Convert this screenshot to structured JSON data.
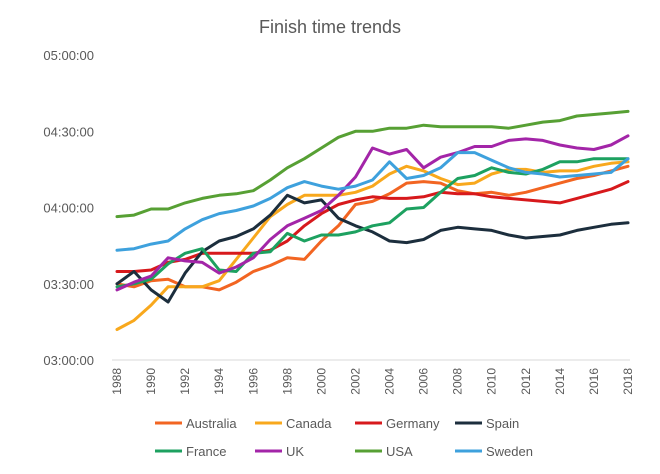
{
  "chart_data": {
    "type": "line",
    "title": "Finish time trends",
    "xlabel": "",
    "ylabel": "",
    "x": [
      1988,
      1989,
      1990,
      1991,
      1992,
      1993,
      1994,
      1995,
      1996,
      1997,
      1998,
      1999,
      2000,
      2001,
      2002,
      2003,
      2004,
      2005,
      2006,
      2007,
      2008,
      2009,
      2010,
      2011,
      2012,
      2013,
      2014,
      2015,
      2016,
      2017,
      2018
    ],
    "x_ticks": [
      "1988",
      "1990",
      "1992",
      "1994",
      "1996",
      "1998",
      "2000",
      "2002",
      "2004",
      "2006",
      "2008",
      "2010",
      "2012",
      "2014",
      "2016",
      "2018"
    ],
    "y_ticks": [
      "03:00:00",
      "03:30:00",
      "04:00:00",
      "04:30:00",
      "05:00:00"
    ],
    "y_unit": "minutes",
    "ylim": [
      180,
      300
    ],
    "grid": false,
    "legend_position": "bottom",
    "series": [
      {
        "name": "Australia",
        "color": "#F26522",
        "values": [
          210.0,
          208.8,
          211.2,
          211.8,
          208.8,
          208.8,
          207.6,
          210.6,
          214.8,
          217.2,
          220.2,
          219.6,
          226.8,
          232.8,
          241.2,
          242.4,
          245.4,
          249.6,
          250.2,
          249.6,
          246.6,
          245.4,
          246.0,
          244.8,
          246.0,
          247.8,
          249.6,
          251.4,
          252.6,
          254.4,
          256.2
        ]
      },
      {
        "name": "Canada",
        "color": "#F8A81D",
        "values": [
          192.0,
          195.6,
          201.6,
          208.8,
          208.8,
          208.8,
          211.2,
          219.6,
          228.0,
          236.4,
          241.2,
          244.8,
          244.8,
          244.8,
          246.0,
          248.4,
          253.2,
          256.2,
          254.4,
          251.4,
          249.0,
          249.6,
          253.2,
          255.0,
          255.0,
          253.8,
          254.4,
          254.4,
          256.2,
          257.4,
          258.0
        ]
      },
      {
        "name": "Germany",
        "color": "#D7191C",
        "values": [
          214.8,
          214.8,
          215.4,
          218.4,
          219.6,
          222.0,
          222.0,
          222.0,
          222.0,
          223.2,
          226.8,
          232.8,
          237.6,
          241.2,
          243.0,
          244.2,
          243.6,
          243.6,
          244.2,
          246.0,
          245.4,
          245.4,
          244.2,
          243.6,
          243.0,
          242.4,
          241.8,
          243.6,
          245.4,
          247.2,
          250.2
        ]
      },
      {
        "name": "Spain",
        "color": "#1C2E3D",
        "values": [
          210.0,
          214.8,
          207.6,
          202.8,
          214.2,
          222.6,
          226.8,
          228.6,
          231.6,
          237.0,
          244.8,
          241.8,
          243.0,
          235.8,
          232.8,
          230.4,
          226.8,
          226.2,
          227.4,
          231.0,
          232.2,
          231.6,
          231.0,
          229.2,
          228.0,
          228.6,
          229.2,
          231.0,
          232.2,
          233.4,
          234.0
        ]
      },
      {
        "name": "France",
        "color": "#1DA160",
        "values": [
          208.8,
          210.0,
          211.8,
          217.8,
          222.0,
          223.8,
          215.4,
          214.8,
          222.0,
          222.6,
          229.8,
          226.8,
          229.2,
          229.2,
          230.4,
          232.8,
          234.0,
          239.4,
          240.0,
          246.0,
          251.4,
          252.6,
          255.6,
          253.8,
          253.2,
          255.0,
          258.0,
          258.0,
          259.2,
          259.2,
          259.2
        ]
      },
      {
        "name": "UK",
        "color": "#A325A8",
        "values": [
          207.6,
          210.6,
          213.0,
          220.2,
          219.0,
          218.4,
          214.2,
          216.6,
          220.2,
          227.4,
          232.8,
          235.8,
          238.8,
          244.8,
          252.0,
          263.4,
          261.0,
          262.8,
          255.6,
          259.8,
          261.6,
          264.0,
          264.0,
          266.4,
          267.0,
          266.4,
          264.6,
          263.4,
          262.8,
          264.6,
          268.2
        ]
      },
      {
        "name": "USA",
        "color": "#57A034",
        "values": [
          236.4,
          237.0,
          239.4,
          239.4,
          241.8,
          243.6,
          244.8,
          245.4,
          246.6,
          250.8,
          255.6,
          259.2,
          263.4,
          267.6,
          270.0,
          270.0,
          271.2,
          271.2,
          272.4,
          271.8,
          271.8,
          271.8,
          271.8,
          271.2,
          272.4,
          273.6,
          274.2,
          276.0,
          276.6,
          277.2,
          277.8
        ]
      },
      {
        "name": "Sweden",
        "color": "#3EA1DD",
        "values": [
          223.2,
          223.8,
          225.6,
          226.8,
          231.6,
          235.2,
          237.6,
          238.8,
          240.6,
          243.6,
          247.8,
          250.2,
          248.4,
          247.2,
          248.4,
          250.8,
          258.0,
          251.4,
          252.6,
          255.6,
          261.6,
          261.6,
          258.6,
          255.6,
          253.8,
          253.2,
          252.0,
          252.6,
          253.2,
          253.8,
          259.2
        ]
      }
    ]
  }
}
